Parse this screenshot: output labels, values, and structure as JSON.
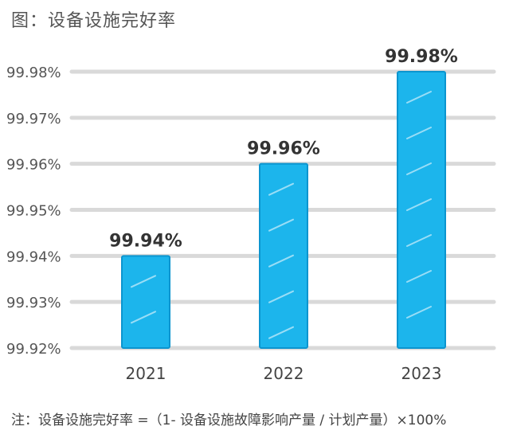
{
  "title": "图：设备设施完好率",
  "footnote": "注：设备设施完好率 =（1- 设备设施故障影响产量 / 计划产量）×100%",
  "colors": {
    "bar": "#1cb5ec",
    "bar_edge": "#0b95cf",
    "grid": "#d9d9d9",
    "hatch": "#ffffff"
  },
  "chart_data": {
    "type": "bar",
    "title": "设备设施完好率",
    "categories": [
      "2021",
      "2022",
      "2023"
    ],
    "values": [
      99.94,
      99.96,
      99.98
    ],
    "data_labels": [
      "99.94%",
      "99.96%",
      "99.98%"
    ],
    "yticks": [
      "99.92%",
      "99.93%",
      "99.94%",
      "99.95%",
      "99.96%",
      "99.97%",
      "99.98%"
    ],
    "ylim": [
      99.92,
      99.98
    ],
    "grid": true,
    "legend": "none"
  }
}
